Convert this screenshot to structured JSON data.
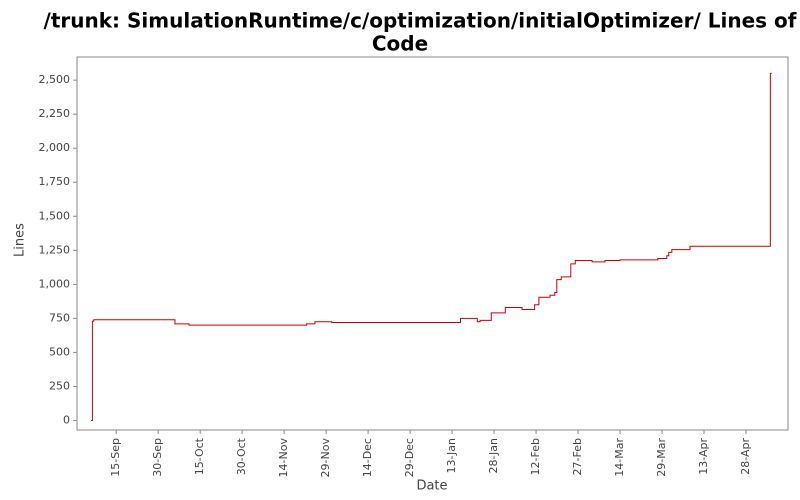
{
  "chart_data": {
    "type": "line",
    "title": [
      "/trunk: SimulationRuntime/c/optimization/initialOptimizer/ Lines of",
      "Code"
    ],
    "x_label": "Date",
    "y_label": "Lines",
    "xlim": [
      0,
      254
    ],
    "xticks": [
      {
        "value": 14,
        "label": "15-Sep"
      },
      {
        "value": 29,
        "label": "30-Sep"
      },
      {
        "value": 44,
        "label": "15-Oct"
      },
      {
        "value": 59,
        "label": "30-Oct"
      },
      {
        "value": 74,
        "label": "14-Nov"
      },
      {
        "value": 89,
        "label": "29-Nov"
      },
      {
        "value": 104,
        "label": "14-Dec"
      },
      {
        "value": 119,
        "label": "29-Dec"
      },
      {
        "value": 134,
        "label": "13-Jan"
      },
      {
        "value": 149,
        "label": "28-Jan"
      },
      {
        "value": 164,
        "label": "12-Feb"
      },
      {
        "value": 179,
        "label": "27-Feb"
      },
      {
        "value": 194,
        "label": "14-Mar"
      },
      {
        "value": 209,
        "label": "29-Mar"
      },
      {
        "value": 224,
        "label": "13-Apr"
      },
      {
        "value": 239,
        "label": "28-Apr"
      }
    ],
    "ylim": [
      -70,
      2670
    ],
    "yticks": [
      0,
      250,
      500,
      750,
      {
        "value": 1000,
        "label": "1,000"
      },
      {
        "value": 1250,
        "label": "1,250"
      },
      {
        "value": 1500,
        "label": "1,500"
      },
      {
        "value": 1750,
        "label": "1,750"
      },
      {
        "value": 2000,
        "label": "2,000"
      },
      {
        "value": 2250,
        "label": "2,250"
      },
      {
        "value": 2500,
        "label": "2,500"
      }
    ],
    "grid": false,
    "x": [
      5,
      5.5,
      5.5,
      6,
      6,
      35,
      35,
      40,
      40,
      82,
      82,
      85,
      85,
      91,
      91,
      137,
      137,
      143,
      143,
      144,
      144,
      148,
      148,
      153,
      153,
      159,
      159,
      163.5,
      163.5,
      165,
      165,
      169,
      169,
      170.7,
      170.7,
      171.4,
      171.4,
      173,
      173,
      176.4,
      176.4,
      178,
      178,
      184,
      184,
      188.6,
      188.6,
      194,
      194,
      207.5,
      207.5,
      210.7,
      210.7,
      211.4,
      211.4,
      212.5,
      212.5,
      219,
      219,
      247.7,
      247.7,
      248.2
    ],
    "series": [
      {
        "color": "#cc0000",
        "values": [
          0,
          0,
          730,
          730,
          740,
          740,
          710,
          710,
          700,
          700,
          710,
          710,
          725,
          725,
          720,
          720,
          750,
          750,
          725,
          725,
          735,
          735,
          790,
          790,
          830,
          830,
          815,
          815,
          850,
          850,
          905,
          905,
          920,
          920,
          940,
          940,
          1035,
          1035,
          1055,
          1055,
          1150,
          1150,
          1175,
          1175,
          1165,
          1165,
          1175,
          1175,
          1180,
          1180,
          1190,
          1190,
          1210,
          1210,
          1235,
          1235,
          1255,
          1255,
          1280,
          1280,
          2550,
          2550
        ]
      }
    ]
  }
}
